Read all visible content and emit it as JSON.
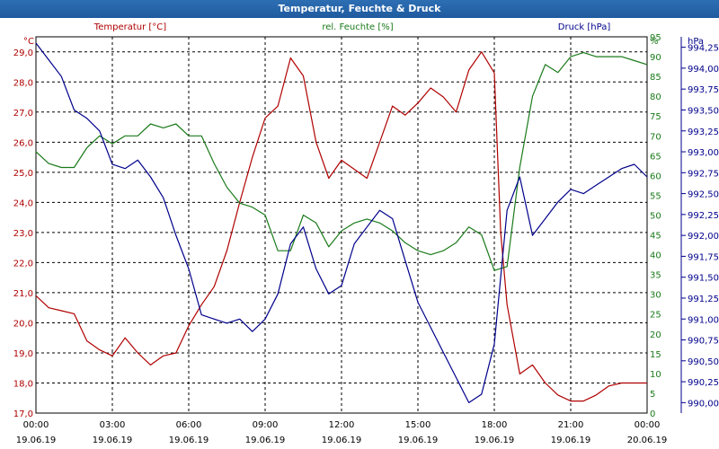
{
  "window": {
    "title": "Temperatur, Feuchte & Druck"
  },
  "chart_data": {
    "type": "line",
    "title": "Temperatur, Feuchte & Druck",
    "colors": {
      "temperature": "#b00000",
      "humidity": "#1a7a1a",
      "pressure": "#00008b",
      "grid": "#000000"
    },
    "grid": true,
    "x_ticks": [
      {
        "time": "00:00",
        "date": "19.06.19"
      },
      {
        "time": "03:00",
        "date": "19.06.19"
      },
      {
        "time": "06:00",
        "date": "19.06.19"
      },
      {
        "time": "09:00",
        "date": "19.06.19"
      },
      {
        "time": "12:00",
        "date": "19.06.19"
      },
      {
        "time": "15:00",
        "date": "19.06.19"
      },
      {
        "time": "18:00",
        "date": "19.06.19"
      },
      {
        "time": "21:00",
        "date": "19.06.19"
      },
      {
        "time": "00:00",
        "date": "20.06.19"
      }
    ],
    "axes": {
      "temperature": {
        "label": "Temperatur [°C]",
        "unit": "°C",
        "min": 17,
        "max": 29.5,
        "ticks": [
          "17,0",
          "18,0",
          "19,0",
          "20,0",
          "21,0",
          "22,0",
          "23,0",
          "24,0",
          "25,0",
          "26,0",
          "27,0",
          "28,0",
          "29,0"
        ]
      },
      "humidity": {
        "label": "rel. Feuchte [%]",
        "unit": "%",
        "min": 0,
        "max": 95,
        "ticks": [
          "0",
          "5",
          "10",
          "15",
          "20",
          "25",
          "30",
          "35",
          "40",
          "45",
          "50",
          "55",
          "60",
          "65",
          "70",
          "75",
          "80",
          "85",
          "90",
          "95"
        ]
      },
      "pressure": {
        "label": "Druck [hPa]",
        "unit": "hPa",
        "min": 989.875,
        "max": 994.375,
        "ticks": [
          "990,00",
          "990,25",
          "990,50",
          "990,75",
          "991,00",
          "991,25",
          "991,50",
          "991,75",
          "992,00",
          "992,25",
          "992,50",
          "992,75",
          "993,00",
          "993,25",
          "993,50",
          "993,75",
          "994,00",
          "994,25"
        ]
      }
    },
    "series": [
      {
        "name": "Temperatur [°C]",
        "axis": "temperature",
        "x": [
          0,
          0.5,
          1,
          1.5,
          2,
          2.5,
          3,
          3.5,
          4,
          4.5,
          5,
          5.5,
          6,
          6.5,
          7,
          7.5,
          8,
          8.5,
          9,
          9.5,
          10,
          10.5,
          11,
          11.5,
          12,
          12.5,
          13,
          13.5,
          14,
          14.5,
          15,
          15.5,
          16,
          16.5,
          17,
          17.5,
          18,
          18.25,
          18.5,
          19,
          19.5,
          20,
          20.5,
          21,
          21.5,
          22,
          22.5,
          23,
          23.5,
          24
        ],
        "y": [
          20.9,
          20.5,
          20.4,
          20.3,
          19.4,
          19.1,
          18.9,
          19.5,
          19.0,
          18.6,
          18.9,
          19.0,
          19.9,
          20.6,
          21.2,
          22.4,
          24.0,
          25.5,
          26.8,
          27.2,
          28.8,
          28.2,
          26.0,
          24.8,
          25.4,
          25.1,
          24.8,
          26.0,
          27.2,
          26.9,
          27.3,
          27.8,
          27.5,
          27.0,
          28.4,
          29.0,
          28.3,
          23.0,
          20.6,
          18.3,
          18.6,
          18.0,
          17.6,
          17.4,
          17.4,
          17.6,
          17.9,
          18.0,
          18.0,
          18.0
        ]
      },
      {
        "name": "rel. Feuchte [%]",
        "axis": "humidity",
        "x": [
          0,
          0.5,
          1,
          1.5,
          2,
          2.5,
          3,
          3.5,
          4,
          4.5,
          5,
          5.5,
          6,
          6.5,
          7,
          7.5,
          8,
          8.5,
          9,
          9.5,
          10,
          10.5,
          11,
          11.5,
          12,
          12.5,
          13,
          13.5,
          14,
          14.5,
          15,
          15.5,
          16,
          16.5,
          17,
          17.5,
          18,
          18.5,
          19,
          19.5,
          20,
          20.5,
          21,
          21.5,
          22,
          22.5,
          23,
          23.5,
          24
        ],
        "y": [
          66,
          63,
          62,
          62,
          67,
          70,
          68,
          70,
          70,
          73,
          72,
          73,
          70,
          70,
          63,
          57,
          53,
          52,
          50,
          41,
          41,
          50,
          48,
          42,
          46,
          48,
          49,
          48,
          46,
          43,
          41,
          40,
          41,
          43,
          47,
          45,
          36,
          37,
          62,
          80,
          88,
          86,
          90,
          91,
          90,
          90,
          90,
          89,
          88
        ]
      },
      {
        "name": "Druck [hPa]",
        "axis": "pressure",
        "x": [
          0,
          0.5,
          1,
          1.5,
          2,
          2.5,
          3,
          3.5,
          4,
          4.5,
          5,
          5.5,
          6,
          6.5,
          7,
          7.5,
          8,
          8.5,
          9,
          9.5,
          10,
          10.5,
          11,
          11.5,
          12,
          12.5,
          13,
          13.5,
          14,
          14.5,
          15,
          15.5,
          16,
          16.5,
          17,
          17.5,
          18,
          18.5,
          19,
          19.5,
          20,
          20.5,
          21,
          21.5,
          22,
          22.5,
          23,
          23.5,
          24
        ],
        "y": [
          994.3,
          994.1,
          993.9,
          993.5,
          993.4,
          993.25,
          992.85,
          992.8,
          992.9,
          992.7,
          992.45,
          992.0,
          991.6,
          991.05,
          991.0,
          990.95,
          991.0,
          990.85,
          991.0,
          991.3,
          991.9,
          992.1,
          991.6,
          991.3,
          991.4,
          991.9,
          992.1,
          992.3,
          992.2,
          991.7,
          991.2,
          990.9,
          990.6,
          990.3,
          990.0,
          990.1,
          990.7,
          992.3,
          992.7,
          992.0,
          992.2,
          992.4,
          992.55,
          992.5,
          992.6,
          992.7,
          992.8,
          992.85,
          992.7
        ]
      }
    ]
  }
}
